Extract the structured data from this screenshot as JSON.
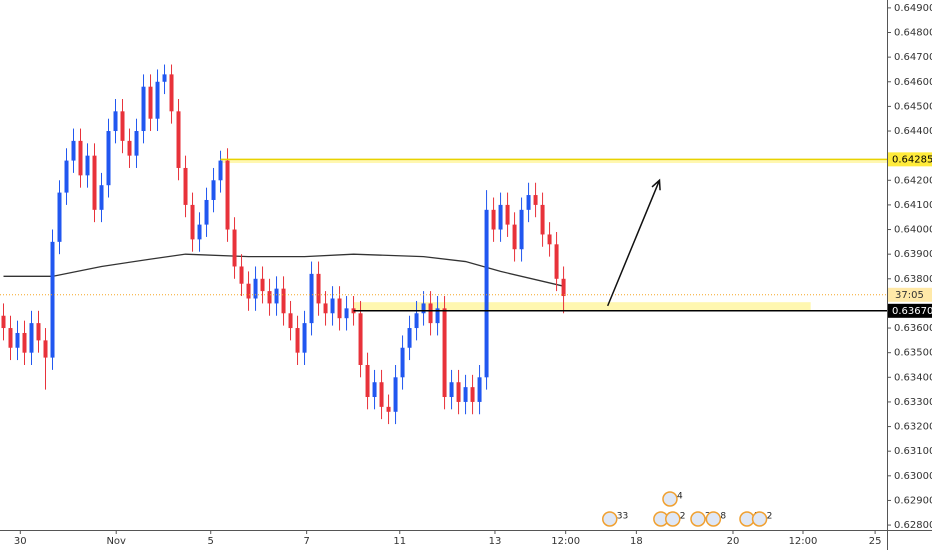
{
  "chart_data": {
    "type": "candlestick",
    "xlim": [
      -0.5,
      126.2
    ],
    "ylim": [
      0.6278,
      0.64932
    ],
    "xticks": [
      {
        "value": 2.4,
        "label": "30"
      },
      {
        "value": 16.1,
        "label": "Nov"
      },
      {
        "value": 29.6,
        "label": "5"
      },
      {
        "value": 43.3,
        "label": "7"
      },
      {
        "value": 56.6,
        "label": "11"
      },
      {
        "value": 70.2,
        "label": "13"
      },
      {
        "value": 80.3,
        "label": "12:00"
      },
      {
        "value": 90.4,
        "label": "18"
      },
      {
        "value": 104.2,
        "label": "20"
      },
      {
        "value": 114.2,
        "label": "12:00"
      },
      {
        "value": 124.5,
        "label": "25"
      }
    ],
    "yticks": [
      {
        "value": 0.628,
        "label": "0.62800"
      },
      {
        "value": 0.629,
        "label": "0.62900"
      },
      {
        "value": 0.63,
        "label": "0.63000"
      },
      {
        "value": 0.631,
        "label": "0.63100"
      },
      {
        "value": 0.632,
        "label": "0.63200"
      },
      {
        "value": 0.633,
        "label": "0.63300"
      },
      {
        "value": 0.634,
        "label": "0.63400"
      },
      {
        "value": 0.635,
        "label": "0.63500"
      },
      {
        "value": 0.636,
        "label": "0.63600"
      },
      {
        "value": 0.638,
        "label": "0.63800"
      },
      {
        "value": 0.639,
        "label": "0.63900"
      },
      {
        "value": 0.64,
        "label": "0.64000"
      },
      {
        "value": 0.641,
        "label": "0.64100"
      },
      {
        "value": 0.642,
        "label": "0.64200"
      },
      {
        "value": 0.644,
        "label": "0.64400"
      },
      {
        "value": 0.645,
        "label": "0.64500"
      },
      {
        "value": 0.646,
        "label": "0.64600"
      },
      {
        "value": 0.647,
        "label": "0.64700"
      },
      {
        "value": 0.648,
        "label": "0.64800"
      },
      {
        "value": 0.649,
        "label": "0.64900"
      }
    ],
    "up_color": "#2157f0",
    "down_color": "#e8323a",
    "open": [
      0.6365,
      0.636,
      0.6352,
      0.6358,
      0.635,
      0.6362,
      0.6355,
      0.6348,
      0.6395,
      0.6415,
      0.6428,
      0.6436,
      0.6422,
      0.643,
      0.6408,
      0.6418,
      0.644,
      0.6448,
      0.6436,
      0.643,
      0.644,
      0.6458,
      0.6445,
      0.646,
      0.6463,
      0.6448,
      0.6425,
      0.641,
      0.6396,
      0.6402,
      0.6412,
      0.642,
      0.6428,
      0.64,
      0.6385,
      0.6378,
      0.6372,
      0.638,
      0.6375,
      0.637,
      0.6376,
      0.6366,
      0.636,
      0.635,
      0.6362,
      0.6382,
      0.637,
      0.6366,
      0.6372,
      0.6364,
      0.6368,
      0.6366,
      0.6345,
      0.6332,
      0.6338,
      0.6328,
      0.6326,
      0.634,
      0.6352,
      0.636,
      0.6366,
      0.637,
      0.6362,
      0.6368,
      0.6332,
      0.6338,
      0.633,
      0.6336,
      0.633,
      0.634,
      0.6408,
      0.64,
      0.641,
      0.6402,
      0.6392,
      0.6408,
      0.6414,
      0.641,
      0.6398,
      0.6394,
      0.638
    ],
    "high": [
      0.637,
      0.6365,
      0.6363,
      0.6363,
      0.6367,
      0.6367,
      0.636,
      0.64,
      0.642,
      0.6433,
      0.6441,
      0.6441,
      0.6435,
      0.6435,
      0.6423,
      0.6445,
      0.6453,
      0.6453,
      0.6441,
      0.6445,
      0.6463,
      0.6463,
      0.6465,
      0.6467,
      0.6467,
      0.6453,
      0.643,
      0.6415,
      0.6407,
      0.6417,
      0.6425,
      0.6432,
      0.6433,
      0.6405,
      0.639,
      0.6383,
      0.6385,
      0.6385,
      0.638,
      0.6381,
      0.6381,
      0.6371,
      0.6365,
      0.6367,
      0.6387,
      0.6387,
      0.6375,
      0.6377,
      0.6377,
      0.6373,
      0.6373,
      0.6371,
      0.635,
      0.6343,
      0.6343,
      0.6333,
      0.6345,
      0.6357,
      0.6365,
      0.6371,
      0.6375,
      0.6375,
      0.6373,
      0.6373,
      0.6343,
      0.6343,
      0.6341,
      0.6341,
      0.6345,
      0.6416,
      0.6413,
      0.6415,
      0.6415,
      0.6407,
      0.6413,
      0.6419,
      0.6419,
      0.6415,
      0.6403,
      0.6399,
      0.6385
    ],
    "low": [
      0.6355,
      0.6347,
      0.6347,
      0.6345,
      0.6345,
      0.635,
      0.6335,
      0.6343,
      0.639,
      0.641,
      0.6423,
      0.6417,
      0.6417,
      0.6403,
      0.6403,
      0.6413,
      0.6435,
      0.6431,
      0.6425,
      0.6425,
      0.6435,
      0.644,
      0.644,
      0.6455,
      0.6443,
      0.642,
      0.6405,
      0.6391,
      0.6391,
      0.6397,
      0.6407,
      0.6415,
      0.6395,
      0.638,
      0.6373,
      0.6367,
      0.6367,
      0.637,
      0.6365,
      0.6365,
      0.6361,
      0.6355,
      0.6345,
      0.6345,
      0.6357,
      0.6365,
      0.6361,
      0.6361,
      0.6359,
      0.6359,
      0.6361,
      0.634,
      0.6327,
      0.6327,
      0.6323,
      0.6321,
      0.6321,
      0.6335,
      0.6347,
      0.6355,
      0.6361,
      0.6357,
      0.6357,
      0.6327,
      0.6327,
      0.6325,
      0.6325,
      0.6325,
      0.6325,
      0.6335,
      0.6395,
      0.6395,
      0.6397,
      0.6387,
      0.6387,
      0.6403,
      0.6405,
      0.6393,
      0.6389,
      0.6375,
      0.6366
    ],
    "close": [
      0.636,
      0.6352,
      0.6358,
      0.635,
      0.6362,
      0.6355,
      0.6348,
      0.6395,
      0.6415,
      0.6428,
      0.6436,
      0.6422,
      0.643,
      0.6408,
      0.6418,
      0.644,
      0.6448,
      0.6436,
      0.643,
      0.644,
      0.6458,
      0.6445,
      0.646,
      0.6463,
      0.6448,
      0.6425,
      0.641,
      0.6396,
      0.6402,
      0.6412,
      0.642,
      0.6428,
      0.64,
      0.6385,
      0.6378,
      0.6372,
      0.638,
      0.6375,
      0.637,
      0.6376,
      0.6366,
      0.636,
      0.635,
      0.6362,
      0.6382,
      0.637,
      0.6366,
      0.6372,
      0.6364,
      0.6368,
      0.6366,
      0.6345,
      0.6332,
      0.6338,
      0.6328,
      0.6326,
      0.634,
      0.6352,
      0.636,
      0.6366,
      0.637,
      0.6362,
      0.6368,
      0.6332,
      0.6338,
      0.633,
      0.6336,
      0.633,
      0.634,
      0.6408,
      0.64,
      0.641,
      0.6402,
      0.6392,
      0.6408,
      0.6414,
      0.641,
      0.6398,
      0.6394,
      0.638,
      0.6373
    ],
    "moving_average": {
      "color": "#333333",
      "x": [
        0,
        7,
        14,
        21,
        26,
        35,
        43,
        50,
        60,
        66,
        71,
        80
      ],
      "values": [
        0.6381,
        0.6381,
        0.6385,
        0.6388,
        0.639,
        0.6389,
        0.6389,
        0.639,
        0.6389,
        0.6387,
        0.6383,
        0.6377
      ]
    },
    "zones": [
      {
        "from": 31,
        "to": 126.2,
        "low": 0.6427,
        "high": 0.64285,
        "color": "#fff7b0"
      },
      {
        "from": 50,
        "to": 115.3,
        "low": 0.6367,
        "high": 0.63705,
        "color": "#fff7b0"
      }
    ],
    "levels": [
      {
        "from": 31,
        "value": 0.64285,
        "label": "0.64285",
        "line_color": "#e8d200",
        "tag_color": "#ffeb3b",
        "text_color": "#000000"
      },
      {
        "from": 50,
        "value": 0.6367,
        "label": "0.63670",
        "line_color": "#000000",
        "tag_color": "#000000",
        "text_color": "#ffffff"
      }
    ],
    "current_price": 0.63735,
    "countdown": "37:05",
    "arrow": {
      "x": [
        86.3,
        93.7
      ],
      "values": [
        0.6369,
        0.642
      ]
    },
    "events": [
      {
        "x": 86.6,
        "label": "33"
      },
      {
        "x": 93.9,
        "label": "3"
      },
      {
        "x": 95.6,
        "label": "2"
      },
      {
        "x": 95.2,
        "label": "4"
      },
      {
        "x": 99.2,
        "label": "2"
      },
      {
        "x": 101.4,
        "label": "8"
      },
      {
        "x": 106.2,
        "label": "5"
      },
      {
        "x": 108.0,
        "label": "2"
      }
    ]
  }
}
